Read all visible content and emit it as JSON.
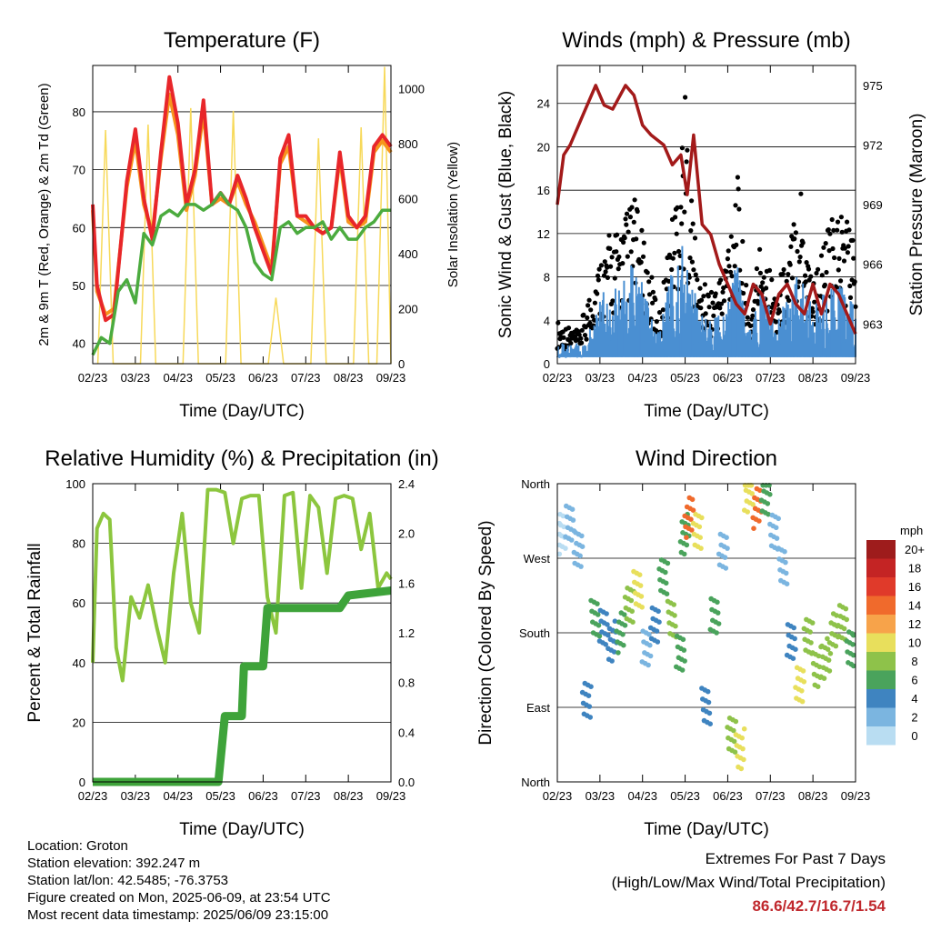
{
  "chart_data": [
    {
      "type": "line",
      "title": "Temperature (F)",
      "xlabel": "Time (Day/UTC)",
      "ylabel": "2m & 9m T (Red, Orange) & 2m Td (Green)",
      "ylabel_right": "Solar Insolation (Yellow)",
      "x_ticks": [
        "02/23",
        "03/23",
        "04/23",
        "05/23",
        "06/23",
        "07/23",
        "08/23",
        "09/23"
      ],
      "ylim": [
        36.5,
        88
      ],
      "y_ticks": [
        40,
        50,
        60,
        70,
        80
      ],
      "ylim_right": [
        0,
        1085
      ],
      "y_ticks_right": [
        0,
        200,
        400,
        600,
        800,
        1000
      ],
      "grid": "horizontal",
      "colors": {
        "t2m": "#e8262a",
        "t9m": "#f7941d",
        "td": "#4bab3e",
        "solar": "#f7d95a"
      },
      "series": [
        {
          "name": "2m T",
          "axis": "left",
          "x": [
            0,
            0.1,
            0.3,
            0.5,
            0.8,
            1.0,
            1.2,
            1.4,
            1.6,
            1.8,
            2.0,
            2.2,
            2.4,
            2.6,
            2.8,
            3.0,
            3.2,
            3.4,
            3.6,
            3.8,
            4.0,
            4.2,
            4.4,
            4.6,
            4.8,
            5.0,
            5.2,
            5.4,
            5.6,
            5.8,
            6.0,
            6.2,
            6.4,
            6.6,
            6.8,
            7.0
          ],
          "values": [
            64,
            50,
            44,
            45,
            68,
            77,
            65,
            58,
            73,
            86,
            78,
            64,
            70,
            82,
            64,
            66,
            64,
            69,
            65,
            60,
            56,
            52,
            72,
            76,
            62,
            62,
            60,
            59,
            60,
            73,
            62,
            60,
            62,
            74,
            76,
            74
          ]
        },
        {
          "name": "9m T",
          "axis": "left",
          "x": [
            0,
            0.1,
            0.3,
            0.5,
            0.8,
            1.0,
            1.2,
            1.4,
            1.6,
            1.8,
            2.0,
            2.2,
            2.4,
            2.6,
            2.8,
            3.0,
            3.2,
            3.4,
            3.6,
            3.8,
            4.0,
            4.2,
            4.4,
            4.6,
            4.8,
            5.0,
            5.2,
            5.4,
            5.6,
            5.8,
            6.0,
            6.2,
            6.4,
            6.6,
            6.8,
            7.0
          ],
          "values": [
            63,
            49,
            45,
            46,
            67,
            75,
            64,
            59,
            72,
            83,
            76,
            63,
            69,
            80,
            64,
            65,
            64,
            68,
            64,
            61,
            57,
            53,
            71,
            74,
            62,
            61,
            60,
            59,
            60,
            72,
            61,
            60,
            61,
            73,
            75,
            73
          ]
        },
        {
          "name": "2m Td",
          "axis": "left",
          "x": [
            0,
            0.2,
            0.4,
            0.6,
            0.8,
            1.0,
            1.2,
            1.4,
            1.6,
            1.8,
            2.0,
            2.2,
            2.4,
            2.6,
            2.8,
            3.0,
            3.2,
            3.4,
            3.6,
            3.8,
            4.0,
            4.2,
            4.4,
            4.6,
            4.8,
            5.0,
            5.2,
            5.4,
            5.6,
            5.8,
            6.0,
            6.2,
            6.4,
            6.6,
            6.8,
            7.0
          ],
          "values": [
            38,
            41,
            40,
            49,
            51,
            47,
            59,
            57,
            62,
            63,
            62,
            64,
            64,
            63,
            64,
            66,
            64,
            63,
            60,
            54,
            52,
            51,
            60,
            61,
            59,
            60,
            60,
            61,
            58,
            60,
            58,
            58,
            60,
            61,
            63,
            63
          ]
        },
        {
          "name": "Solar",
          "axis": "right",
          "x": [
            0.3,
            1.3,
            2.3,
            3.3,
            4.3,
            5.3,
            6.3,
            6.85
          ],
          "values": [
            850,
            870,
            930,
            920,
            240,
            820,
            860,
            1080
          ]
        }
      ]
    },
    {
      "type": "scatter",
      "title": "Winds (mph) & Pressure (mb)",
      "xlabel": "Time (Day/UTC)",
      "ylabel": "Sonic Wind & Gust (Blue, Black)",
      "ylabel_right": "Station Pressure (Maroon)",
      "x_ticks": [
        "02/23",
        "03/23",
        "04/23",
        "05/23",
        "06/23",
        "07/23",
        "08/23",
        "09/23"
      ],
      "ylim": [
        0,
        27.5
      ],
      "y_ticks": [
        0,
        4,
        8,
        12,
        16,
        20,
        24
      ],
      "ylim_right": [
        961.0,
        976.0
      ],
      "y_ticks_right": [
        963,
        966,
        969,
        972,
        975
      ],
      "grid": "horizontal",
      "colors": {
        "wind": "#4a8fd2",
        "gust": "#000000",
        "pressure": "#a31a1a"
      },
      "series": [
        {
          "name": "Pressure",
          "axis": "right",
          "x": [
            0,
            0.15,
            0.3,
            0.6,
            0.9,
            1.1,
            1.3,
            1.6,
            1.8,
            2.0,
            2.2,
            2.5,
            2.7,
            2.9,
            3.05,
            3.2,
            3.4,
            3.6,
            3.8,
            4.0,
            4.2,
            4.4,
            4.6,
            4.8,
            5.0,
            5.2,
            5.4,
            5.6,
            5.8,
            6.0,
            6.2,
            6.4,
            6.6,
            6.8,
            7.0
          ],
          "values": [
            969,
            971.5,
            972,
            973.5,
            975,
            974,
            973.8,
            975,
            974.5,
            973,
            972.5,
            972,
            971,
            971.5,
            969.5,
            972.5,
            968,
            967.5,
            966,
            965,
            964,
            963.5,
            965,
            964.5,
            963,
            964.5,
            965,
            964,
            963.5,
            965,
            963.5,
            965,
            964.5,
            963.5,
            962.5
          ]
        },
        {
          "name": "Wind",
          "axis": "left",
          "x": [
            0,
            0.5,
            0.9,
            1.2,
            1.5,
            1.8,
            2.1,
            2.4,
            2.7,
            3.0,
            3.3,
            3.6,
            3.9,
            4.2,
            4.5,
            4.8,
            5.1,
            5.4,
            5.7,
            6.0,
            6.3,
            6.6,
            6.9,
            7.0
          ],
          "values": [
            2,
            2,
            5,
            8,
            7,
            10,
            6,
            3,
            9,
            12,
            5,
            4,
            6,
            10,
            3,
            8,
            4,
            6,
            9,
            5,
            7,
            8,
            6,
            5
          ]
        },
        {
          "name": "Gust",
          "axis": "left",
          "x": [
            0,
            0.5,
            0.9,
            1.2,
            1.5,
            1.8,
            2.1,
            2.4,
            2.7,
            3.0,
            3.3,
            3.6,
            3.9,
            4.2,
            4.5,
            4.8,
            5.1,
            5.4,
            5.7,
            6.0,
            6.3,
            6.6,
            6.9,
            7.0
          ],
          "values": [
            4,
            3,
            9,
            12,
            13,
            16,
            10,
            5,
            14,
            25,
            8,
            7,
            9,
            19,
            4,
            13,
            7,
            10,
            18,
            8,
            12,
            15,
            14,
            9
          ]
        }
      ]
    },
    {
      "type": "line",
      "title": "Relative Humidity (%) & Precipitation (in)",
      "xlabel": "Time (Day/UTC)",
      "ylabel": "Percent & Total Rainfall",
      "x_ticks": [
        "02/23",
        "03/23",
        "04/23",
        "05/23",
        "06/23",
        "07/23",
        "08/23",
        "09/23"
      ],
      "ylim": [
        0,
        100
      ],
      "y_ticks": [
        0,
        20,
        40,
        60,
        80,
        100
      ],
      "ylim_right": [
        0,
        2.4
      ],
      "y_ticks_right": [
        0.0,
        0.4,
        0.8,
        1.2,
        1.6,
        2.0,
        2.4
      ],
      "grid": "horizontal",
      "colors": {
        "rh": "#8cc63e",
        "precip": "#3ea33a"
      },
      "series": [
        {
          "name": "RH",
          "axis": "left",
          "x": [
            0,
            0.1,
            0.25,
            0.4,
            0.55,
            0.7,
            0.9,
            1.1,
            1.3,
            1.5,
            1.7,
            1.9,
            2.1,
            2.3,
            2.5,
            2.7,
            2.9,
            3.1,
            3.3,
            3.5,
            3.7,
            3.9,
            4.1,
            4.3,
            4.5,
            4.7,
            4.9,
            5.1,
            5.3,
            5.5,
            5.7,
            5.9,
            6.1,
            6.3,
            6.5,
            6.7,
            6.9,
            7.0
          ],
          "values": [
            40,
            85,
            90,
            88,
            45,
            34,
            62,
            55,
            66,
            52,
            40,
            70,
            90,
            60,
            50,
            98,
            98,
            97,
            80,
            95,
            96,
            96,
            62,
            50,
            96,
            97,
            65,
            96,
            92,
            70,
            95,
            96,
            95,
            78,
            90,
            65,
            70,
            68
          ]
        },
        {
          "name": "Precipitation",
          "axis": "right",
          "x": [
            0,
            2.95,
            3.05,
            3.1,
            3.5,
            3.55,
            4.0,
            4.1,
            4.5,
            4.6,
            5.8,
            6.0,
            7.0
          ],
          "values": [
            0,
            0,
            0.35,
            0.53,
            0.53,
            0.93,
            0.93,
            1.4,
            1.4,
            1.4,
            1.4,
            1.5,
            1.54
          ]
        }
      ]
    },
    {
      "type": "scatter",
      "title": "Wind Direction",
      "xlabel": "Time (Day/UTC)",
      "ylabel": "Direction (Colored By Speed)",
      "x_ticks": [
        "02/23",
        "03/23",
        "04/23",
        "05/23",
        "06/23",
        "07/23",
        "08/23",
        "09/23"
      ],
      "y_ticks": [
        "North",
        "East",
        "South",
        "West",
        "North"
      ],
      "ylim": [
        0,
        360
      ],
      "grid": "horizontal",
      "colorbar": {
        "title": "mph",
        "labels": [
          "20+",
          "18",
          "16",
          "14",
          "12",
          "10",
          "8",
          "6",
          "4",
          "2",
          "0"
        ],
        "colors": [
          "#9e1c1c",
          "#c42424",
          "#e03a2a",
          "#f06a2c",
          "#f7a34a",
          "#e8df5c",
          "#8ec24a",
          "#4aa35c",
          "#3f84c0",
          "#7bb5e0",
          "#b9ddf2"
        ]
      },
      "series": [
        {
          "name": "Direction",
          "x": [
            0.1,
            0.3,
            0.5,
            0.7,
            0.9,
            1.1,
            1.3,
            1.5,
            1.7,
            1.9,
            2.1,
            2.3,
            2.5,
            2.7,
            2.9,
            3.0,
            3.1,
            3.3,
            3.5,
            3.7,
            3.9,
            4.1,
            4.3,
            4.5,
            4.7,
            4.9,
            5.1,
            5.3,
            5.5,
            5.7,
            5.9,
            6.1,
            6.3,
            6.5,
            6.7,
            6.9
          ],
          "values": [
            300,
            310,
            280,
            100,
            200,
            190,
            170,
            180,
            210,
            230,
            160,
            190,
            250,
            200,
            160,
            300,
            320,
            300,
            90,
            200,
            280,
            60,
            40,
            350,
            330,
            340,
            300,
            260,
            170,
            120,
            180,
            140,
            150,
            180,
            190,
            160
          ],
          "speed": [
            2,
            2,
            2,
            3,
            4,
            5,
            4,
            6,
            6,
            7,
            3,
            4,
            5,
            6,
            3,
            8,
            14,
            9,
            2,
            3,
            4,
            8,
            10,
            9,
            12,
            8,
            3,
            2,
            3,
            7,
            9,
            8,
            7,
            6,
            6,
            7
          ]
        }
      ]
    }
  ],
  "info": {
    "location": "Location: Groton",
    "elevation": "Station elevation: 392.247 m",
    "latlon": "Station lat/lon: 42.5485; -76.3753",
    "created": "Figure created on Mon, 2025-06-09, at 23:54 UTC",
    "recent": "Most recent data timestamp: 2025/06/09 23:15:00"
  },
  "extremes": {
    "title": "Extremes For Past 7 Days",
    "subtitle": "(High/Low/Max Wind/Total Precipitation)",
    "values": "86.6/42.7/16.7/1.54"
  }
}
